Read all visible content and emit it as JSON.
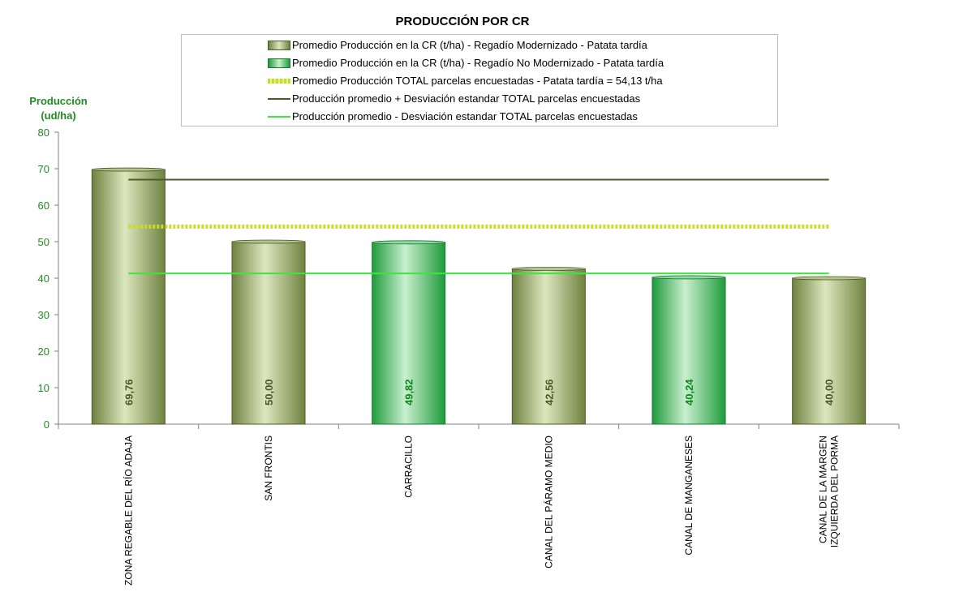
{
  "chart_data": {
    "type": "bar",
    "title": "PRODUCCIÓN POR CR",
    "ylabel": "Producción (ud/ha)",
    "ylabel_lines": [
      "Producción",
      "(ud/ha)"
    ],
    "xlabel": "",
    "ylim": [
      0,
      80
    ],
    "yticks": [
      0,
      10,
      20,
      30,
      40,
      50,
      60,
      70,
      80
    ],
    "grid": false,
    "legend_position": "top",
    "categories": [
      "ZONA REGABLE DEL RÍO ADAJA",
      "SAN FRONTIS",
      "CARRACILLO",
      "CANAL DEL PÁRAMO MEDIO",
      "CANAL DE MANGANESES",
      "CANAL DE LA MARGEN IZQUIERDA DEL PORMA"
    ],
    "category_lines": [
      [
        "ZONA REGABLE DEL RÍO ADAJA"
      ],
      [
        "SAN FRONTIS"
      ],
      [
        "CARRACILLO"
      ],
      [
        "CANAL DEL PÁRAMO MEDIO"
      ],
      [
        "CANAL DE MANGANESES"
      ],
      [
        "CANAL DE LA MARGEN",
        "IZQUIERDA DEL PORMA"
      ]
    ],
    "bars": [
      {
        "value": 69.76,
        "label": "69,76",
        "series": 0
      },
      {
        "value": 50.0,
        "label": "50,00",
        "series": 0
      },
      {
        "value": 49.82,
        "label": "49,82",
        "series": 1
      },
      {
        "value": 42.56,
        "label": "42,56",
        "series": 0
      },
      {
        "value": 40.24,
        "label": "40,24",
        "series": 1
      },
      {
        "value": 40.0,
        "label": "40,00",
        "series": 0
      }
    ],
    "series": [
      {
        "name": "Promedio Producción en la CR (t/ha) - Regadío Modernizado  - Patata tardía",
        "kind": "bar",
        "color": "#8a9e5a"
      },
      {
        "name": "Promedio Producción en la CR (t/ha) - Regadío No Modernizado  - Patata tardía",
        "kind": "bar",
        "color": "#3cb45a"
      },
      {
        "name": "Promedio Producción TOTAL parcelas encuestadas - Patata tardía = 54,13 t/ha",
        "kind": "line",
        "value": 54.13,
        "color": "#c8dc28"
      },
      {
        "name": "Producción promedio + Desviación estandar TOTAL parcelas encuestadas",
        "kind": "line",
        "value": 67.0,
        "color": "#4b5a28"
      },
      {
        "name": "Producción promedio - Desviación estandar TOTAL parcelas encuestadas",
        "kind": "line",
        "value": 41.3,
        "color": "#3ce63c"
      }
    ]
  }
}
